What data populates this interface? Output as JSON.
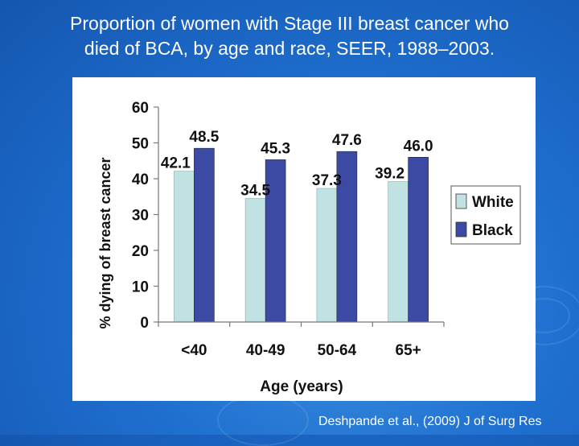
{
  "slide": {
    "title_line1": "Proportion of women with Stage III breast cancer who",
    "title_line2": "died of BCA, by age and race, SEER, 1988–2003.",
    "citation": "Deshpande et al., (2009) J of Surg Res"
  },
  "chart_data": {
    "type": "bar",
    "title": "",
    "xlabel": "Age (years)",
    "ylabel": "% dying of breast cancer",
    "ylim": [
      0,
      60
    ],
    "yticks": [
      "0",
      "10",
      "20",
      "30",
      "40",
      "50",
      "60"
    ],
    "grid": false,
    "legend_position": "right",
    "categories": [
      "<40",
      "40-49",
      "50-64",
      "65+"
    ],
    "series": [
      {
        "name": "White",
        "values": [
          42.1,
          34.5,
          37.3,
          39.2
        ],
        "labels": [
          "42.1",
          "34.5",
          "37.3",
          "39.2"
        ],
        "color": "#c1e2e2"
      },
      {
        "name": "Black",
        "values": [
          48.5,
          45.3,
          47.6,
          46.0
        ],
        "labels": [
          "48.5",
          "45.3",
          "47.6",
          "46.0"
        ],
        "color": "#3c4aa3"
      }
    ]
  }
}
